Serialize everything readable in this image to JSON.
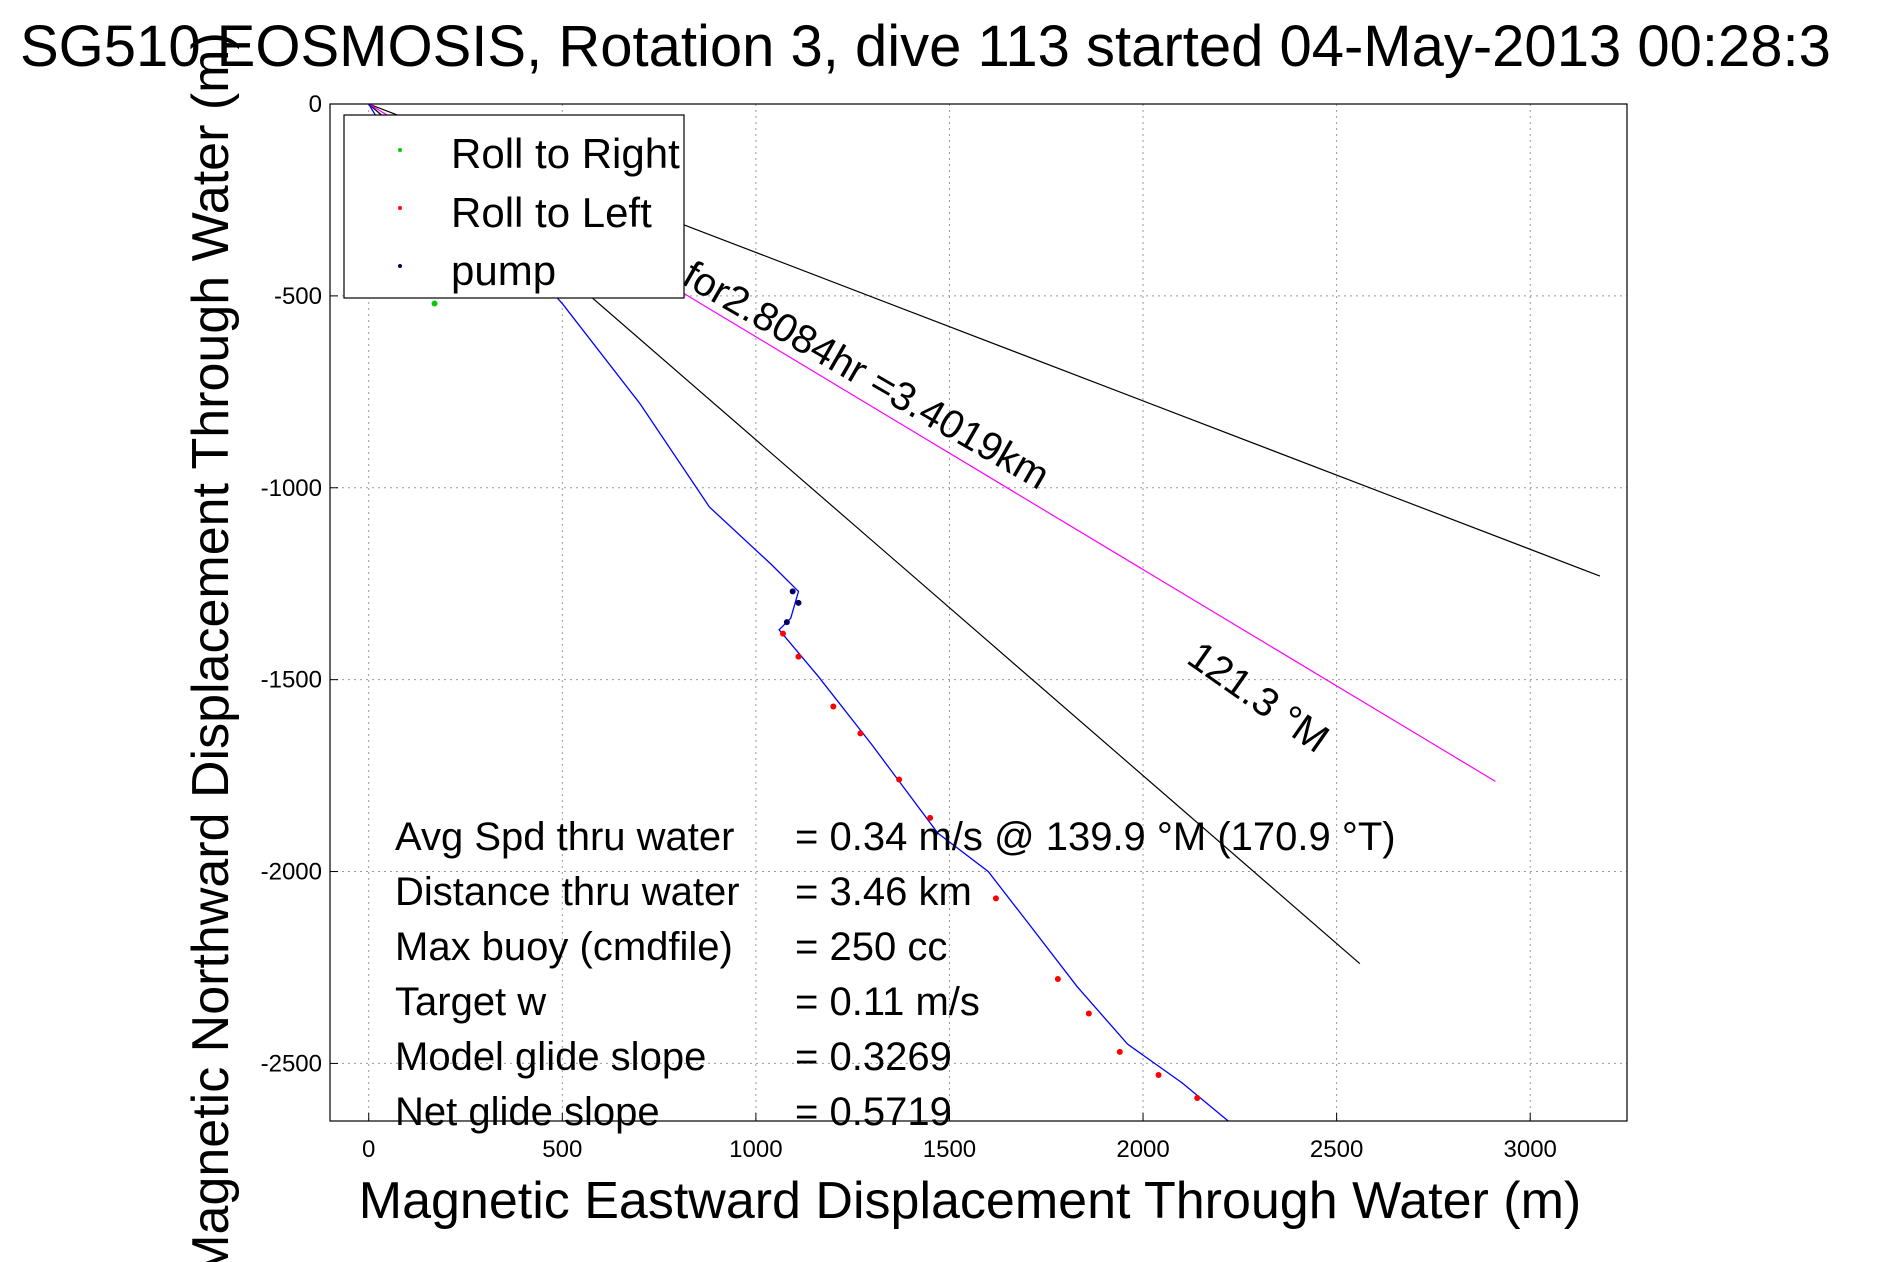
{
  "chart_data": {
    "type": "line",
    "title": "SG510 EOSMOSIS, Rotation 3, dive 113 started 04-May-2013 00:28:3",
    "xlabel": "Magnetic Eastward Displacement Through Water (m)",
    "ylabel": "Magnetic Northward Displacement Through Water (m)",
    "xlim": [
      -100,
      3250
    ],
    "ylim": [
      -2650,
      0
    ],
    "x_ticks": [
      0,
      500,
      1000,
      1500,
      2000,
      2500,
      3000
    ],
    "x_tick_labels": [
      "0",
      "500",
      "1000",
      "1500",
      "2000",
      "2500",
      "3000"
    ],
    "y_ticks": [
      0,
      -500,
      -1000,
      -1500,
      -2000,
      -2500
    ],
    "y_tick_labels": [
      "0",
      "-500",
      "-1000",
      "-1500",
      "-2000",
      "-2500"
    ],
    "grid": true,
    "legend_position": "top-left",
    "legend": [
      {
        "label": "Roll to Right",
        "color": "#00cc00"
      },
      {
        "label": "Roll to Left",
        "color": "#ff0000"
      },
      {
        "label": "pump",
        "color": "#000066"
      }
    ],
    "track": {
      "color": "#0000ff",
      "points": [
        [
          0,
          0
        ],
        [
          60,
          -100
        ],
        [
          160,
          -190
        ],
        [
          330,
          -330
        ],
        [
          500,
          -520
        ],
        [
          700,
          -780
        ],
        [
          880,
          -1050
        ],
        [
          1040,
          -1200
        ],
        [
          1110,
          -1270
        ],
        [
          1090,
          -1340
        ],
        [
          1060,
          -1370
        ],
        [
          1160,
          -1490
        ],
        [
          1300,
          -1670
        ],
        [
          1470,
          -1900
        ],
        [
          1600,
          -2000
        ],
        [
          1700,
          -2130
        ],
        [
          1830,
          -2300
        ],
        [
          1960,
          -2450
        ],
        [
          2100,
          -2550
        ],
        [
          2220,
          -2650
        ]
      ],
      "roll_right_segments": [
        [
          0,
          80
        ],
        [
          100,
          360
        ],
        [
          170,
          520
        ]
      ],
      "roll_left_segments": [
        [
          1070,
          1380
        ],
        [
          1110,
          1440
        ],
        [
          1200,
          1570
        ],
        [
          1270,
          1640
        ],
        [
          1370,
          1760
        ],
        [
          1450,
          1860
        ],
        [
          1620,
          2070
        ],
        [
          1780,
          2280
        ],
        [
          1860,
          2370
        ],
        [
          1940,
          2470
        ],
        [
          2040,
          2530
        ],
        [
          2140,
          2590
        ]
      ],
      "pump_segments": [
        [
          1095,
          1270
        ],
        [
          1110,
          1300
        ],
        [
          1080,
          1350
        ]
      ]
    },
    "reference_lines": [
      {
        "color": "#000000",
        "from": [
          0,
          0
        ],
        "to": [
          3180,
          -1230
        ]
      },
      {
        "color": "#000000",
        "from": [
          0,
          0
        ],
        "to": [
          2560,
          -2240
        ]
      },
      {
        "color": "#ff00ff",
        "from": [
          0,
          0
        ],
        "to": [
          2910,
          -1765
        ]
      }
    ],
    "annotations": {
      "distance": "for2.8084hr =3.4019km",
      "heading": "121.3 °M"
    },
    "stats": [
      {
        "label": "Avg Spd thru water",
        "value": "=  0.34 m/s @ 139.9 °M (170.9 °T)"
      },
      {
        "label": "Distance thru water",
        "value": "=  3.46 km"
      },
      {
        "label": "Max buoy (cmdfile)",
        "value": "= 250 cc"
      },
      {
        "label": "Target w",
        "value": "= 0.11 m/s"
      },
      {
        "label": "Model glide slope",
        "value": "= 0.3269"
      },
      {
        "label": "Net glide slope",
        "value": "= 0.5719"
      }
    ]
  }
}
